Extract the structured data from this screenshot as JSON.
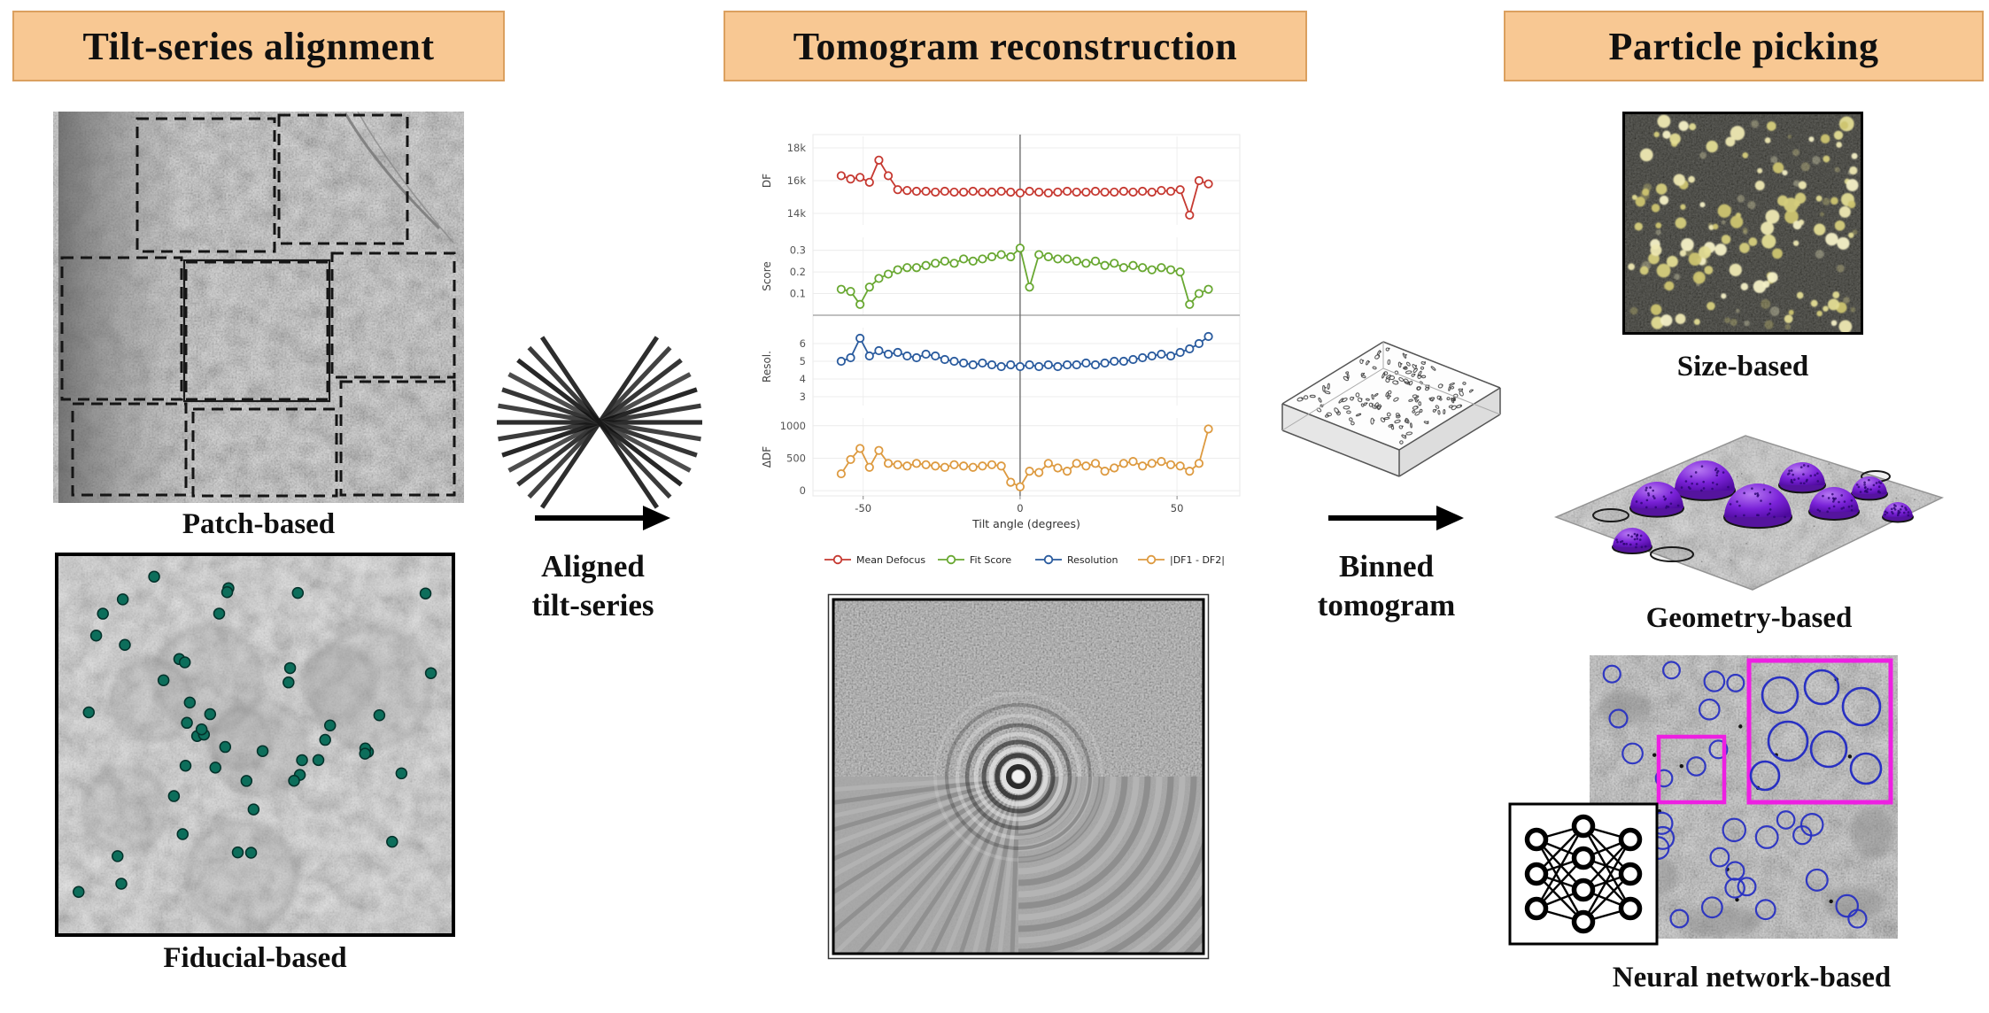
{
  "headers": {
    "left": "Tilt-series alignment",
    "middle": "Tomogram reconstruction",
    "right": "Particle picking"
  },
  "labels": {
    "patch": "Patch-based",
    "fiducial": "Fiducial-based",
    "size": "Size-based",
    "geometry": "Geometry-based",
    "nn": "Neural network-based"
  },
  "arrow_labels": {
    "aligned_1": "Aligned",
    "aligned_2": "tilt-series",
    "binned_1": "Binned",
    "binned_2": "tomogram"
  },
  "palette": {
    "header_bg": "#f8c893",
    "header_border": "#dba05f",
    "fiducial_dot": "#0d6e5b",
    "dome_purple": "#6a18c8",
    "magenta_box": "#ee1fe2",
    "picker_circle_blue": "#2830c2",
    "particle_yellow": "#e8e2a0",
    "arrow_black": "#000000"
  },
  "chart_data": {
    "type": "line",
    "title": "",
    "xlabel": "Tilt angle (degrees)",
    "xlim": [
      -66,
      70
    ],
    "x_ticks": [
      -50,
      0,
      50
    ],
    "x_tick_labels": [
      "-50",
      "0",
      "50"
    ],
    "x": [
      -57,
      -54,
      -51,
      -48,
      -45,
      -42,
      -39,
      -36,
      -33,
      -30,
      -27,
      -24,
      -21,
      -18,
      -15,
      -12,
      -9,
      -6,
      -3,
      0,
      3,
      6,
      9,
      12,
      15,
      18,
      21,
      24,
      27,
      30,
      33,
      36,
      39,
      42,
      45,
      48,
      51,
      54,
      57,
      60
    ],
    "panels": [
      {
        "label": "DF",
        "ylim": [
          13300,
          18700
        ],
        "ticks": [
          14000,
          16000,
          18000
        ],
        "tick_labels": [
          "14k",
          "16k",
          "18k"
        ]
      },
      {
        "label": "Score",
        "ylim": [
          0,
          0.36
        ],
        "ticks": [
          0.1,
          0.2,
          0.3
        ],
        "tick_labels": [
          "0.1",
          "0.2",
          "0.3"
        ],
        "zero_line": true
      },
      {
        "label": "Resol.",
        "ylim": [
          2.5,
          6.9
        ],
        "ticks": [
          3,
          4,
          5,
          6
        ],
        "tick_labels": [
          "3",
          "4",
          "5",
          "6"
        ]
      },
      {
        "label": "ΔDF",
        "ylim": [
          -80,
          1120
        ],
        "ticks": [
          0,
          500,
          1000
        ],
        "tick_labels": [
          "0",
          "500",
          "1000"
        ]
      }
    ],
    "series": [
      {
        "name": "Mean Defocus",
        "color": "#c63931",
        "values": [
          16300,
          16100,
          16200,
          15900,
          17250,
          16300,
          15450,
          15400,
          15350,
          15350,
          15300,
          15350,
          15300,
          15300,
          15350,
          15300,
          15300,
          15350,
          15300,
          15250,
          15350,
          15300,
          15250,
          15300,
          15350,
          15300,
          15300,
          15350,
          15300,
          15300,
          15350,
          15300,
          15350,
          15300,
          15400,
          15350,
          15450,
          13900,
          16000,
          15800
        ]
      },
      {
        "name": "Fit Score",
        "color": "#69a832",
        "values": [
          0.12,
          0.11,
          0.05,
          0.13,
          0.17,
          0.19,
          0.21,
          0.22,
          0.22,
          0.23,
          0.24,
          0.25,
          0.24,
          0.26,
          0.25,
          0.26,
          0.27,
          0.28,
          0.27,
          0.31,
          0.13,
          0.28,
          0.27,
          0.26,
          0.26,
          0.25,
          0.24,
          0.25,
          0.23,
          0.24,
          0.22,
          0.23,
          0.22,
          0.21,
          0.22,
          0.21,
          0.2,
          0.05,
          0.1,
          0.12
        ]
      },
      {
        "name": "Resolution",
        "color": "#2a5b9e",
        "values": [
          5.0,
          5.2,
          6.3,
          5.3,
          5.6,
          5.4,
          5.5,
          5.3,
          5.2,
          5.4,
          5.3,
          5.1,
          5.0,
          4.9,
          4.8,
          4.9,
          4.8,
          4.7,
          4.8,
          4.7,
          4.8,
          4.7,
          4.8,
          4.7,
          4.8,
          4.8,
          4.9,
          4.8,
          4.9,
          5.0,
          5.0,
          5.1,
          5.2,
          5.3,
          5.4,
          5.3,
          5.5,
          5.7,
          6.0,
          6.4
        ]
      },
      {
        "name": "|DF1 - DF2|",
        "color": "#dd9a40",
        "values": [
          260,
          480,
          650,
          360,
          620,
          420,
          400,
          380,
          420,
          400,
          380,
          360,
          400,
          380,
          360,
          380,
          400,
          380,
          130,
          60,
          300,
          280,
          420,
          350,
          300,
          420,
          380,
          420,
          300,
          350,
          420,
          450,
          380,
          420,
          450,
          400,
          380,
          300,
          420,
          950
        ]
      }
    ],
    "legend": [
      "Mean Defocus",
      "Fit Score",
      "Resolution",
      "|DF1 - DF2|"
    ],
    "legend_position": "bottom",
    "grid": true
  }
}
